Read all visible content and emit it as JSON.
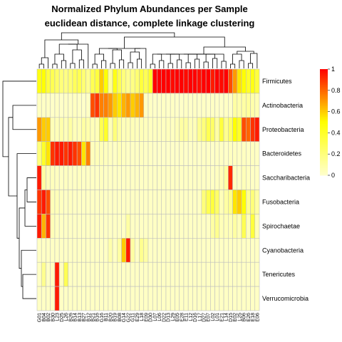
{
  "chart_data": {
    "type": "heatmap",
    "title": "Normalized Phylum Abundances per Sample",
    "subtitle": "euclidean distance, complete linkage clustering",
    "rows": [
      "Firmicutes",
      "Actinobacteria",
      "Proteobacteria",
      "Bacteroidetes",
      "Saccharibacteria",
      "Fusobacteria",
      "Spirochaetae",
      "Cyanobacteria",
      "Tenericutes",
      "Verrucomicrobia"
    ],
    "column_labels": [
      "G01",
      "B04",
      "B02",
      "B30",
      "L23",
      "D25",
      "L26",
      "B26",
      "B14",
      "B13",
      "B27",
      "B12",
      "B21",
      "B16",
      "G16",
      "B11",
      "B20",
      "B19",
      "B08",
      "G14",
      "G22",
      "G11",
      "E29",
      "L18",
      "E09",
      "D30",
      "L07",
      "L06",
      "D22",
      "D13",
      "L29",
      "E05",
      "E28",
      "E11",
      "L12",
      "D16",
      "L17",
      "D27",
      "E07",
      "L02",
      "L01",
      "E21",
      "L14",
      "D15",
      "E02",
      "L25",
      "B06",
      "E26",
      "E18",
      "E06"
    ],
    "values": [
      [
        0.45,
        0.5,
        0.35,
        0.3,
        0.25,
        0.2,
        0.18,
        0.22,
        0.28,
        0.3,
        0.22,
        0.15,
        0.3,
        0.35,
        0.6,
        0.5,
        0.12,
        0.45,
        0.3,
        0.2,
        0.15,
        0.18,
        0.22,
        0.35,
        0.3,
        0.4,
        1,
        1,
        1,
        1,
        0.98,
        1,
        1,
        0.98,
        1,
        1,
        0.97,
        1,
        1,
        0.95,
        1,
        0.98,
        1,
        0.85,
        0.7,
        0.55,
        0.5,
        0.4,
        0.45,
        0.35
      ],
      [
        0.03,
        0.02,
        0.02,
        0.01,
        0.02,
        0.01,
        0.02,
        0.02,
        0.03,
        0.02,
        0.01,
        0.02,
        0.85,
        0.9,
        0.75,
        0.75,
        0.7,
        0.6,
        0.55,
        0.65,
        0.7,
        0.6,
        0.65,
        0.7,
        0.02,
        0.02,
        0.01,
        0.01,
        0.02,
        0.01,
        0.02,
        0.01,
        0.01,
        0.02,
        0.01,
        0.02,
        0.01,
        0.02,
        0.01,
        0.02,
        0.01,
        0.01,
        0.02,
        0.01,
        0.1,
        0.08,
        0.1,
        0.12,
        0.08,
        0.06
      ],
      [
        0.7,
        0.6,
        0.6,
        0.05,
        0.05,
        0.08,
        0.05,
        0.1,
        0.05,
        0.05,
        0.1,
        0.08,
        0.05,
        0.05,
        0.3,
        0.4,
        0.05,
        0.2,
        0.1,
        0.05,
        0.05,
        0.05,
        0.04,
        0.05,
        0.04,
        0.03,
        0.03,
        0.03,
        0.03,
        0.04,
        0.03,
        0.05,
        0.1,
        0.1,
        0.05,
        0.05,
        0.15,
        0.2,
        0.3,
        0.25,
        0.1,
        0.35,
        0.15,
        0.25,
        0.5,
        0.4,
        0.85,
        0.8,
        0.9,
        0.95
      ],
      [
        0.2,
        0.4,
        0.55,
        0.9,
        0.95,
        0.95,
        0.9,
        0.95,
        0.9,
        0.85,
        0.55,
        0.75,
        0.04,
        0.05,
        0.05,
        0.04,
        0.03,
        0.02,
        0.05,
        0.03,
        0.02,
        0.02,
        0.02,
        0.03,
        0.02,
        0.02,
        0.01,
        0.01,
        0.01,
        0.01,
        0.01,
        0.01,
        0.02,
        0.01,
        0.01,
        0.02,
        0.01,
        0.02,
        0.02,
        0.01,
        0.02,
        0.02,
        0.01,
        0.03,
        0.03,
        0.02,
        0.03,
        0.02,
        0.03,
        0.02
      ],
      [
        0.95,
        0.1,
        0.05,
        0.04,
        0.03,
        0.02,
        0.03,
        0.02,
        0.02,
        0.03,
        0.02,
        0.02,
        0.02,
        0.02,
        0.03,
        0.02,
        0.02,
        0.02,
        0.02,
        0.02,
        0.02,
        0.02,
        0.02,
        0.02,
        0.02,
        0.02,
        0.02,
        0.02,
        0.02,
        0.02,
        0.02,
        0.02,
        0.02,
        0.02,
        0.02,
        0.02,
        0.02,
        0.02,
        0.02,
        0.02,
        0.03,
        0.05,
        0.1,
        0.92,
        0.03,
        0.02,
        0.05,
        0.03,
        0.02,
        0.02
      ],
      [
        0.9,
        0.95,
        0.85,
        0.05,
        0.05,
        0.03,
        0.02,
        0.03,
        0.02,
        0.02,
        0.02,
        0.02,
        0.02,
        0.02,
        0.03,
        0.02,
        0.02,
        0.02,
        0.02,
        0.02,
        0.02,
        0.02,
        0.02,
        0.02,
        0.02,
        0.02,
        0.02,
        0.02,
        0.02,
        0.02,
        0.02,
        0.02,
        0.02,
        0.02,
        0.02,
        0.02,
        0.02,
        0.2,
        0.3,
        0.35,
        0.25,
        0.05,
        0.1,
        0.15,
        0.55,
        0.6,
        0.5,
        0.15,
        0.2,
        0.1
      ],
      [
        0.95,
        0.65,
        0.9,
        0.05,
        0.03,
        0.02,
        0.02,
        0.02,
        0.02,
        0.02,
        0.02,
        0.02,
        0.02,
        0.02,
        0.02,
        0.02,
        0.02,
        0.02,
        0.02,
        0.02,
        0.1,
        0.02,
        0.02,
        0.02,
        0.02,
        0.02,
        0.02,
        0.02,
        0.02,
        0.02,
        0.02,
        0.02,
        0.02,
        0.02,
        0.02,
        0.02,
        0.02,
        0.02,
        0.02,
        0.1,
        0.15,
        0.05,
        0.05,
        0.05,
        0.1,
        0.05,
        0.3,
        0.05,
        0.35,
        0.05
      ],
      [
        0.02,
        0.02,
        0.02,
        0.02,
        0.02,
        0.02,
        0.02,
        0.02,
        0.02,
        0.02,
        0.02,
        0.02,
        0.02,
        0.02,
        0.02,
        0.02,
        0.08,
        0.02,
        0.1,
        0.6,
        0.95,
        0.1,
        0.02,
        0.15,
        0.1,
        0.02,
        0.02,
        0.02,
        0.02,
        0.02,
        0.02,
        0.02,
        0.02,
        0.02,
        0.02,
        0.02,
        0.02,
        0.02,
        0.02,
        0.02,
        0.02,
        0.02,
        0.02,
        0.02,
        0.02,
        0.02,
        0.02,
        0.02,
        0.02,
        0.02
      ],
      [
        0.02,
        0.15,
        0.02,
        0.03,
        0.95,
        0.03,
        0.3,
        0.02,
        0.02,
        0.02,
        0.02,
        0.02,
        0.02,
        0.02,
        0.02,
        0.02,
        0.02,
        0.02,
        0.02,
        0.02,
        0.02,
        0.02,
        0.02,
        0.02,
        0.02,
        0.02,
        0.02,
        0.02,
        0.02,
        0.02,
        0.02,
        0.02,
        0.02,
        0.02,
        0.02,
        0.02,
        0.02,
        0.02,
        0.02,
        0.02,
        0.02,
        0.02,
        0.02,
        0.02,
        0.02,
        0.02,
        0.02,
        0.02,
        0.02,
        0.02
      ],
      [
        0.02,
        0.02,
        0.02,
        0.02,
        0.95,
        0.02,
        0.02,
        0.02,
        0.02,
        0.02,
        0.02,
        0.02,
        0.02,
        0.02,
        0.02,
        0.02,
        0.02,
        0.02,
        0.02,
        0.02,
        0.02,
        0.02,
        0.02,
        0.02,
        0.02,
        0.02,
        0.02,
        0.02,
        0.02,
        0.02,
        0.02,
        0.02,
        0.02,
        0.02,
        0.02,
        0.02,
        0.02,
        0.02,
        0.02,
        0.02,
        0.02,
        0.02,
        0.02,
        0.02,
        0.02,
        0.02,
        0.02,
        0.02,
        0.02,
        0.02
      ]
    ],
    "colorbar": {
      "ticks": [
        "0",
        "0.2",
        "0.4",
        "0.6",
        "0.8",
        "1"
      ],
      "range": [
        0,
        1
      ],
      "low_color": "#FFFFCC",
      "mid_color": "#FFFF00",
      "high_color": "#FF0000"
    },
    "cell_border_color": "#BEBEBE"
  }
}
